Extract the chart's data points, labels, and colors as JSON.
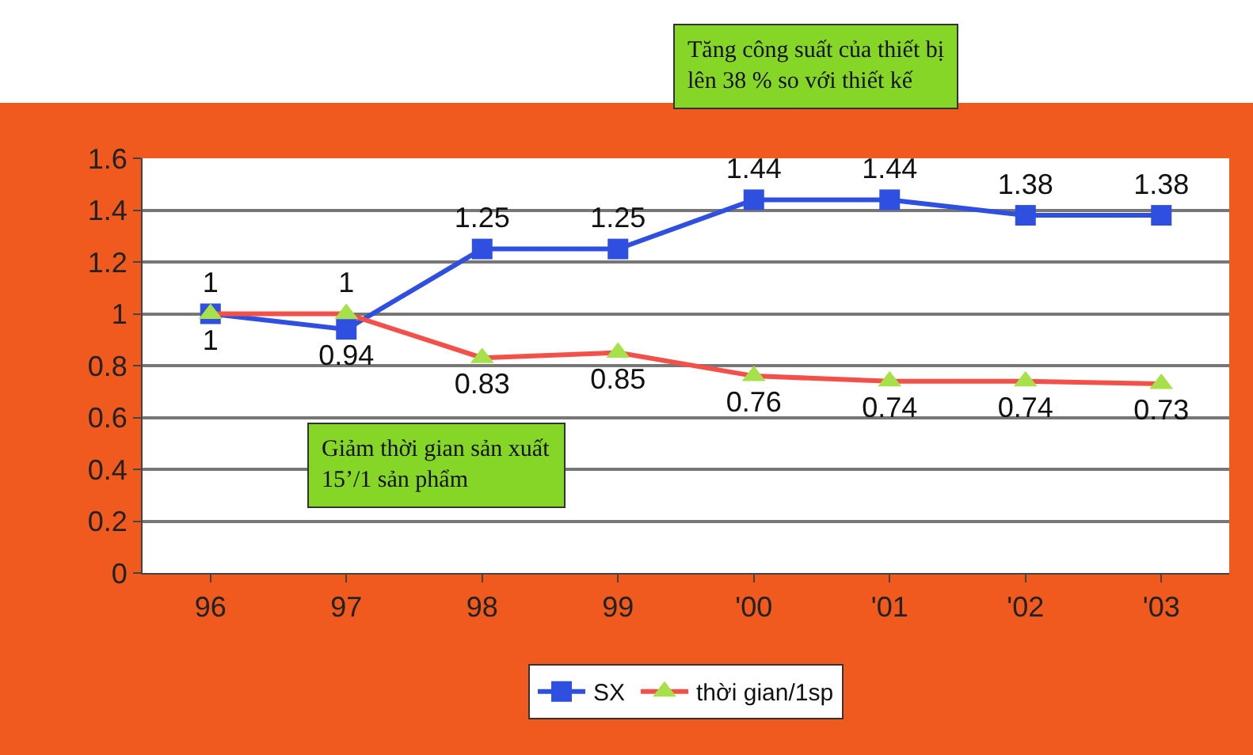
{
  "chart_data": {
    "type": "line",
    "categories": [
      "96",
      "97",
      "98",
      "99",
      "'00",
      "'01",
      "'02",
      "'03"
    ],
    "series": [
      {
        "name": "SX",
        "color": "#2f4fe0",
        "marker": "square",
        "values": [
          1,
          0.94,
          1.25,
          1.25,
          1.44,
          1.44,
          1.38,
          1.38
        ]
      },
      {
        "name": "thời gian/1sp",
        "color": "#f4504a",
        "colors": [
          "#a6e04a",
          "#a6e04a",
          "#a6e04a",
          "#a6e04a",
          "#a6e04a",
          "#a6e04a",
          "#a6e04a",
          "#a6e04a"
        ],
        "marker": "triangle",
        "values": [
          1,
          1,
          0.83,
          0.85,
          0.76,
          0.74,
          0.74,
          0.73
        ]
      }
    ],
    "ylim": [
      0,
      1.6
    ],
    "yticks": [
      0,
      0.2,
      0.4,
      0.6,
      0.8,
      1,
      1.2,
      1.4,
      1.6
    ],
    "grid": "y",
    "legend": "bottom",
    "data_labels": true,
    "annotations": [
      "Tăng công suất của thiết bị\nlên 38 % so với thiết kế",
      "Giảm thời gian sản xuất\n15’/1 sản phẩm"
    ]
  }
}
